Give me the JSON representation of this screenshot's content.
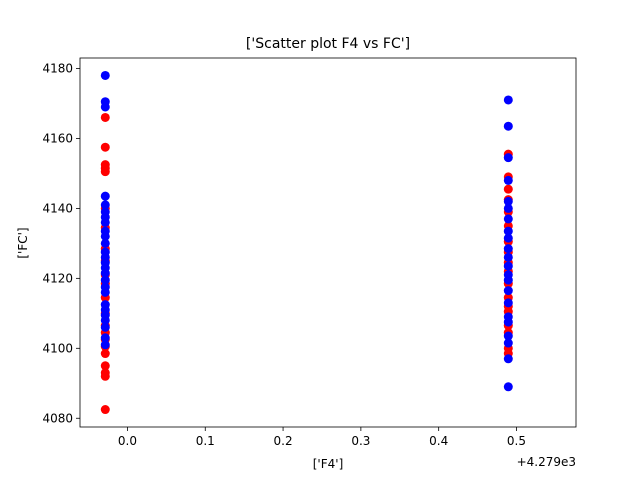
{
  "chart_data": {
    "type": "scatter",
    "title": "['Scatter plot F4 vs FC']",
    "xlabel": "['F4']",
    "ylabel": "['FC']",
    "x_offset_label": "+4.279e3",
    "xlim": [
      -0.061,
      0.5765
    ],
    "ylim": [
      4077.5,
      4183
    ],
    "x_ticks": [
      0.0,
      0.1,
      0.2,
      0.3,
      0.4,
      0.5
    ],
    "x_tick_labels": [
      "0.0",
      "0.1",
      "0.2",
      "0.3",
      "0.4",
      "0.5"
    ],
    "y_ticks": [
      4080,
      4100,
      4120,
      4140,
      4160,
      4180
    ],
    "y_tick_labels": [
      "4080",
      "4100",
      "4120",
      "4140",
      "4160",
      "4180"
    ],
    "grid": false,
    "series": [
      {
        "color": "#ff0000",
        "points": [
          {
            "x": -0.0285,
            "y": 4082.5
          },
          {
            "x": -0.0285,
            "y": 4092.0
          },
          {
            "x": -0.0285,
            "y": 4093.0
          },
          {
            "x": -0.0285,
            "y": 4095.0
          },
          {
            "x": -0.0285,
            "y": 4098.5
          },
          {
            "x": -0.0285,
            "y": 4100.5
          },
          {
            "x": -0.0285,
            "y": 4102.5
          },
          {
            "x": -0.0285,
            "y": 4104.5
          },
          {
            "x": -0.0285,
            "y": 4106.5
          },
          {
            "x": -0.0285,
            "y": 4110.0
          },
          {
            "x": -0.0285,
            "y": 4114.5
          },
          {
            "x": -0.0285,
            "y": 4118.5
          },
          {
            "x": -0.0285,
            "y": 4121.0
          },
          {
            "x": -0.0285,
            "y": 4125.0
          },
          {
            "x": -0.0285,
            "y": 4128.5
          },
          {
            "x": -0.0285,
            "y": 4134.5
          },
          {
            "x": -0.0285,
            "y": 4140.0
          },
          {
            "x": -0.0285,
            "y": 4150.5
          },
          {
            "x": -0.0285,
            "y": 4151.5
          },
          {
            "x": -0.0285,
            "y": 4152.5
          },
          {
            "x": -0.0285,
            "y": 4157.5
          },
          {
            "x": -0.0285,
            "y": 4166.0
          },
          {
            "x": 0.4895,
            "y": 4098.5
          },
          {
            "x": 0.4895,
            "y": 4100.0
          },
          {
            "x": 0.4895,
            "y": 4104.5
          },
          {
            "x": 0.4895,
            "y": 4106.5
          },
          {
            "x": 0.4895,
            "y": 4110.5
          },
          {
            "x": 0.4895,
            "y": 4112.0
          },
          {
            "x": 0.4895,
            "y": 4114.5
          },
          {
            "x": 0.4895,
            "y": 4118.5
          },
          {
            "x": 0.4895,
            "y": 4122.0
          },
          {
            "x": 0.4895,
            "y": 4124.5
          },
          {
            "x": 0.4895,
            "y": 4127.5
          },
          {
            "x": 0.4895,
            "y": 4130.5
          },
          {
            "x": 0.4895,
            "y": 4135.0
          },
          {
            "x": 0.4895,
            "y": 4139.0
          },
          {
            "x": 0.4895,
            "y": 4142.5
          },
          {
            "x": 0.4895,
            "y": 4145.5
          },
          {
            "x": 0.4895,
            "y": 4149.0
          },
          {
            "x": 0.4895,
            "y": 4155.5
          }
        ]
      },
      {
        "color": "#0000ff",
        "points": [
          {
            "x": -0.0285,
            "y": 4101.0
          },
          {
            "x": -0.0285,
            "y": 4103.0
          },
          {
            "x": -0.0285,
            "y": 4106.0
          },
          {
            "x": -0.0285,
            "y": 4108.0
          },
          {
            "x": -0.0285,
            "y": 4109.5
          },
          {
            "x": -0.0285,
            "y": 4111.0
          },
          {
            "x": -0.0285,
            "y": 4112.5
          },
          {
            "x": -0.0285,
            "y": 4116.0
          },
          {
            "x": -0.0285,
            "y": 4117.5
          },
          {
            "x": -0.0285,
            "y": 4119.5
          },
          {
            "x": -0.0285,
            "y": 4121.5
          },
          {
            "x": -0.0285,
            "y": 4123.0
          },
          {
            "x": -0.0285,
            "y": 4124.5
          },
          {
            "x": -0.0285,
            "y": 4126.0
          },
          {
            "x": -0.0285,
            "y": 4127.5
          },
          {
            "x": -0.0285,
            "y": 4130.0
          },
          {
            "x": -0.0285,
            "y": 4132.0
          },
          {
            "x": -0.0285,
            "y": 4133.5
          },
          {
            "x": -0.0285,
            "y": 4136.0
          },
          {
            "x": -0.0285,
            "y": 4137.5
          },
          {
            "x": -0.0285,
            "y": 4139.0
          },
          {
            "x": -0.0285,
            "y": 4141.0
          },
          {
            "x": -0.0285,
            "y": 4143.5
          },
          {
            "x": -0.0285,
            "y": 4169.0
          },
          {
            "x": -0.0285,
            "y": 4170.5
          },
          {
            "x": -0.0285,
            "y": 4178.0
          },
          {
            "x": 0.4895,
            "y": 4089.0
          },
          {
            "x": 0.4895,
            "y": 4097.0
          },
          {
            "x": 0.4895,
            "y": 4101.5
          },
          {
            "x": 0.4895,
            "y": 4103.5
          },
          {
            "x": 0.4895,
            "y": 4107.5
          },
          {
            "x": 0.4895,
            "y": 4109.0
          },
          {
            "x": 0.4895,
            "y": 4113.0
          },
          {
            "x": 0.4895,
            "y": 4116.5
          },
          {
            "x": 0.4895,
            "y": 4119.5
          },
          {
            "x": 0.4895,
            "y": 4121.0
          },
          {
            "x": 0.4895,
            "y": 4123.5
          },
          {
            "x": 0.4895,
            "y": 4126.0
          },
          {
            "x": 0.4895,
            "y": 4128.5
          },
          {
            "x": 0.4895,
            "y": 4131.5
          },
          {
            "x": 0.4895,
            "y": 4133.5
          },
          {
            "x": 0.4895,
            "y": 4137.0
          },
          {
            "x": 0.4895,
            "y": 4140.0
          },
          {
            "x": 0.4895,
            "y": 4142.0
          },
          {
            "x": 0.4895,
            "y": 4148.0
          },
          {
            "x": 0.4895,
            "y": 4154.5
          },
          {
            "x": 0.4895,
            "y": 4163.5
          },
          {
            "x": 0.4895,
            "y": 4171.0
          }
        ]
      }
    ]
  }
}
